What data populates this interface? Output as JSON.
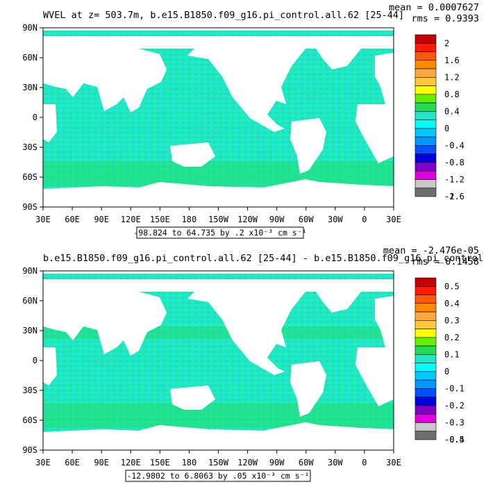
{
  "colors": {
    "land": "#ffffff",
    "ocean_base": "#22e6c8",
    "frame": "#000000"
  },
  "colorbar_colors": [
    "#c40000",
    "#ff1a00",
    "#ff5a00",
    "#ff8a00",
    "#ffa840",
    "#ffc838",
    "#ffff00",
    "#66ee00",
    "#22dd55",
    "#22e6c8",
    "#00ffff",
    "#00c8ff",
    "#0096ff",
    "#0050ff",
    "#0000dd",
    "#8000c8",
    "#e000e0",
    "#c8c8c8",
    "#6e6e6e"
  ],
  "lon_ticks": [
    "30E",
    "60E",
    "90E",
    "120E",
    "150E",
    "180",
    "150W",
    "120W",
    "90W",
    "60W",
    "30W",
    "0",
    "30E"
  ],
  "lat_ticks": [
    "90N",
    "60N",
    "30N",
    "0",
    "30S",
    "60S",
    "90S"
  ],
  "panels": [
    {
      "title": "WVEL at z= 503.7m, b.e15.B1850.f09_g16.pi_control.all.62 [25-44]",
      "stats_mean": "mean = 0.0007627",
      "stats_rms": "rms = 0.9393",
      "range_label": "-98.824 to 64.735 by .2 x10⁻³ cm s⁻¹",
      "colorbar_labels": [
        "2",
        "1.6",
        "1.2",
        "0.8",
        "0.4",
        "0",
        "-0.4",
        "-0.8",
        "-1.2",
        "-1.6",
        "-2"
      ]
    },
    {
      "title": "b.e15.B1850.f09_g16.pi_control.all.62 [25-44] - b.e15.B1850.f09_g16.pi_control",
      "stats_mean": "mean = -2.476e-05",
      "stats_rms": "rms = 0.1458",
      "range_label": "-12.9802 to 6.8063 by .05 x10⁻³ cm s⁻¹",
      "colorbar_labels": [
        "0.5",
        "0.4",
        "0.3",
        "0.2",
        "0.1",
        "0",
        "-0.1",
        "-0.2",
        "-0.3",
        "-0.4",
        "-0.5"
      ]
    }
  ]
}
